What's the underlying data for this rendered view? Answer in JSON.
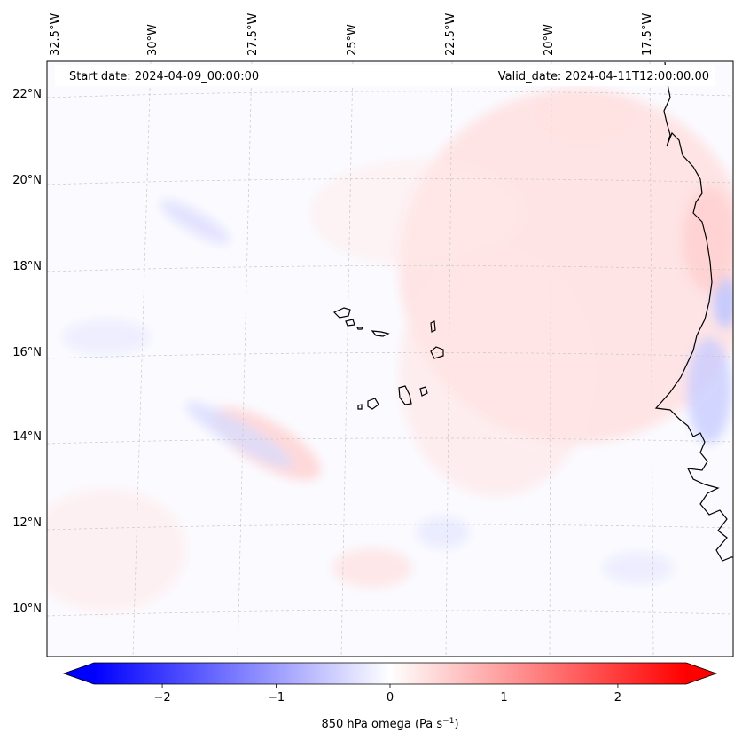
{
  "map": {
    "lon_ticks": [
      "32.5°W",
      "30°W",
      "27.5°W",
      "25°W",
      "22.5°W",
      "20°W",
      "17.5°W"
    ],
    "lat_ticks": [
      "22°N",
      "20°N",
      "18°N",
      "16°N",
      "14°N",
      "12°N",
      "10°N"
    ],
    "start_date": "Start date: 2024-04-09_00:00:00",
    "valid_date": "Valid_date: 2024-04-11T12:00:00.00",
    "colors": {
      "negative": "#0000ff",
      "positive": "#ff0000",
      "neutral": "#ffffff",
      "coastline": "#000000",
      "grid": "#bdbdbd"
    }
  },
  "colorbar": {
    "ticks": [
      "−2",
      "−1",
      "0",
      "1",
      "2"
    ],
    "tick_values": [
      -2,
      -1,
      0,
      1,
      2
    ],
    "range": [
      -2.6,
      2.6
    ],
    "label_text": "850 hPa omega (Pa s",
    "label_sup": "−1",
    "label_close": ")"
  }
}
